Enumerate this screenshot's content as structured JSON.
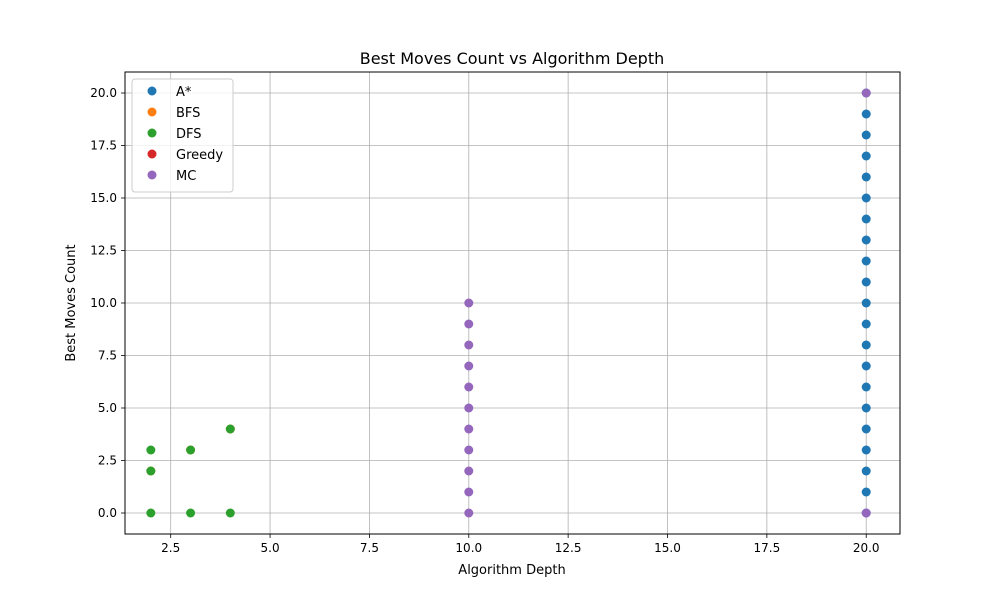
{
  "chart_data": {
    "type": "scatter",
    "title": "Best Moves Count vs Algorithm Depth",
    "xlabel": "Algorithm Depth",
    "ylabel": "Best Moves Count",
    "xlim": [
      1.35,
      20.85
    ],
    "ylim": [
      -1.0,
      21.0
    ],
    "xticks": [
      2.5,
      5.0,
      7.5,
      10.0,
      12.5,
      15.0,
      17.5,
      20.0
    ],
    "xtick_labels": [
      "2.5",
      "5.0",
      "7.5",
      "10.0",
      "12.5",
      "15.0",
      "17.5",
      "20.0"
    ],
    "yticks": [
      0.0,
      2.5,
      5.0,
      7.5,
      10.0,
      12.5,
      15.0,
      17.5,
      20.0
    ],
    "ytick_labels": [
      "0.0",
      "2.5",
      "5.0",
      "7.5",
      "10.0",
      "12.5",
      "15.0",
      "17.5",
      "20.0"
    ],
    "grid": true,
    "legend_position": "upper-left",
    "series": [
      {
        "name": "A*",
        "color": "#1f77b4",
        "points": [
          [
            20,
            0
          ],
          [
            20,
            1
          ],
          [
            20,
            2
          ],
          [
            20,
            3
          ],
          [
            20,
            4
          ],
          [
            20,
            5
          ],
          [
            20,
            6
          ],
          [
            20,
            7
          ],
          [
            20,
            8
          ],
          [
            20,
            9
          ],
          [
            20,
            10
          ],
          [
            20,
            11
          ],
          [
            20,
            12
          ],
          [
            20,
            13
          ],
          [
            20,
            14
          ],
          [
            20,
            15
          ],
          [
            20,
            16
          ],
          [
            20,
            17
          ],
          [
            20,
            18
          ],
          [
            20,
            19
          ],
          [
            20,
            20
          ]
        ]
      },
      {
        "name": "BFS",
        "color": "#ff7f0e",
        "points": [
          [
            2,
            2
          ],
          [
            3,
            3
          ],
          [
            4,
            4
          ]
        ]
      },
      {
        "name": "DFS",
        "color": "#2ca02c",
        "points": [
          [
            2,
            0
          ],
          [
            2,
            2
          ],
          [
            2,
            3
          ],
          [
            3,
            0
          ],
          [
            3,
            3
          ],
          [
            4,
            0
          ],
          [
            4,
            4
          ]
        ]
      },
      {
        "name": "Greedy",
        "color": "#d62728",
        "points": []
      },
      {
        "name": "MC",
        "color": "#9467bd",
        "points": [
          [
            10,
            0
          ],
          [
            10,
            1
          ],
          [
            10,
            2
          ],
          [
            10,
            3
          ],
          [
            10,
            4
          ],
          [
            10,
            5
          ],
          [
            10,
            6
          ],
          [
            10,
            7
          ],
          [
            10,
            8
          ],
          [
            10,
            9
          ],
          [
            10,
            10
          ],
          [
            20,
            0
          ],
          [
            20,
            20
          ]
        ]
      }
    ]
  }
}
